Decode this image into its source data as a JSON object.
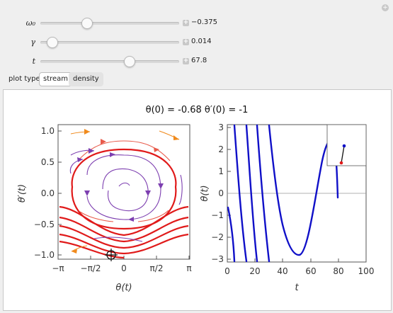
{
  "controls": {
    "sliders": [
      {
        "label": "ω₀",
        "value_text": "−0.375",
        "position": 0.32
      },
      {
        "label": "γ",
        "value_text": "0.014",
        "position": 0.05
      },
      {
        "label": "t",
        "value_text": "67.8",
        "position": 0.65
      }
    ],
    "plot_type": {
      "label": "plot type",
      "options": [
        "stream",
        "density"
      ],
      "selected": "stream"
    },
    "plus_glyph": "+"
  },
  "plot": {
    "title": "θ(0) = -0.68   θ′(0) = -1",
    "phase": {
      "xlabel": "θ(t)",
      "ylabel": "θ′(t)",
      "xticks": [
        "−π",
        "−π/2",
        "0",
        "π/2",
        "π"
      ],
      "yticks": [
        "1.0",
        "0.5",
        "0.0",
        "−0.5",
        "−1.0"
      ]
    },
    "time": {
      "xlabel": "t",
      "ylabel": "θ(t)",
      "xticks": [
        "0",
        "20",
        "40",
        "60",
        "80",
        "100"
      ],
      "yticks": [
        "3",
        "2",
        "1",
        "0",
        "−1",
        "−2",
        "−3"
      ]
    }
  },
  "colors": {
    "red": "#e01a1a",
    "purple": "#7d3fb0",
    "orange": "#f08a1c",
    "blue": "#1010c8"
  }
}
